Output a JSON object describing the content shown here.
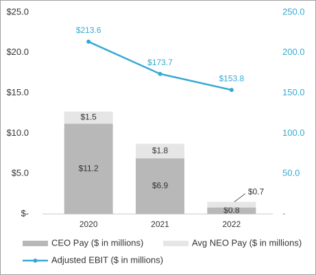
{
  "chart_data": {
    "type": "bar",
    "categories": [
      "2020",
      "2021",
      "2022"
    ],
    "series": [
      {
        "name": "CEO Pay ($ in millions)",
        "type": "bar",
        "color": "#b8b8b8",
        "values": [
          11.2,
          6.9,
          0.8
        ],
        "value_labels": [
          "$11.2",
          "$6.9",
          "$0.8"
        ]
      },
      {
        "name": "Avg NEO Pay ($ in millions)",
        "type": "bar",
        "color": "#e6e6e6",
        "values": [
          1.5,
          1.8,
          0.7
        ],
        "value_labels": [
          "$1.5",
          "$1.8",
          "$0.7"
        ]
      },
      {
        "name": "Adjusted EBIT ($ in millions)",
        "type": "line",
        "axis": "y2",
        "color": "#36a9d3",
        "values": [
          213.6,
          173.7,
          153.8
        ],
        "value_labels": [
          "$213.6",
          "$173.7",
          "$153.8"
        ]
      }
    ],
    "ylim": [
      0,
      25
    ],
    "yticks": [
      {
        "value": 0,
        "label": "$-"
      },
      {
        "value": 5,
        "label": "$5.0"
      },
      {
        "value": 10,
        "label": "$10.0"
      },
      {
        "value": 15,
        "label": "$15.0"
      },
      {
        "value": 20,
        "label": "$20.0"
      },
      {
        "value": 25,
        "label": "$25.0"
      }
    ],
    "y2lim": [
      0,
      250
    ],
    "y2ticks": [
      {
        "value": 0,
        "label": "-"
      },
      {
        "value": 50,
        "label": "50.0"
      },
      {
        "value": 100,
        "label": "100.0"
      },
      {
        "value": 150,
        "label": "150.0"
      },
      {
        "value": 200,
        "label": "200.0"
      },
      {
        "value": 250,
        "label": "250.0"
      }
    ],
    "grid": false
  }
}
